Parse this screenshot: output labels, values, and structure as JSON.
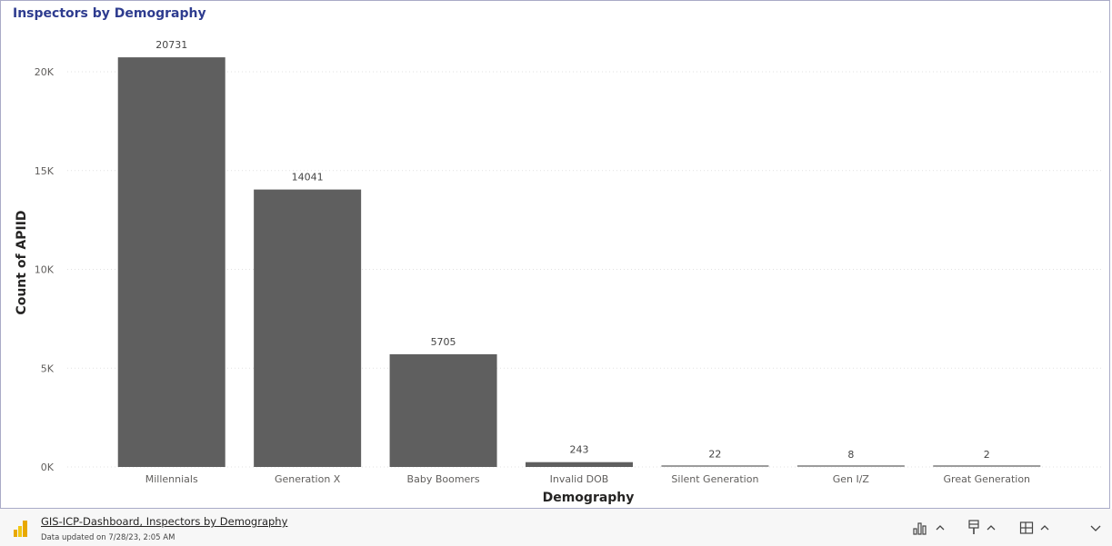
{
  "visual": {
    "title": "Inspectors by Demography"
  },
  "chart_data": {
    "type": "bar",
    "title": "Inspectors by Demography",
    "xlabel": "Demography",
    "ylabel": "Count of APIID",
    "categories": [
      "Millennials",
      "Generation X",
      "Baby Boomers",
      "Invalid DOB",
      "Silent Generation",
      "Gen I/Z",
      "Great Generation"
    ],
    "values": [
      20731,
      14041,
      5705,
      243,
      22,
      8,
      2
    ],
    "data_labels": [
      "20731",
      "14041",
      "5705",
      "243",
      "22",
      "8",
      "2"
    ],
    "yticks": [
      0,
      5000,
      10000,
      15000,
      20000
    ],
    "ytick_labels": [
      "0K",
      "5K",
      "10K",
      "15K",
      "20K"
    ],
    "ylim": [
      0,
      22000
    ],
    "grid": true,
    "bar_color": "#5f5f5f",
    "grid_color": "#e1e1e1"
  },
  "footer": {
    "report_title": "GIS-ICP-Dashboard, Inspectors by Demography",
    "updated": "Data updated on 7/28/23, 2:05 AM",
    "icons": [
      "bar-chart-icon",
      "chevron-up-icon",
      "paintbrush-icon",
      "chevron-up-icon",
      "layout-icon",
      "chevron-up-icon",
      "chevron-down-icon"
    ]
  }
}
